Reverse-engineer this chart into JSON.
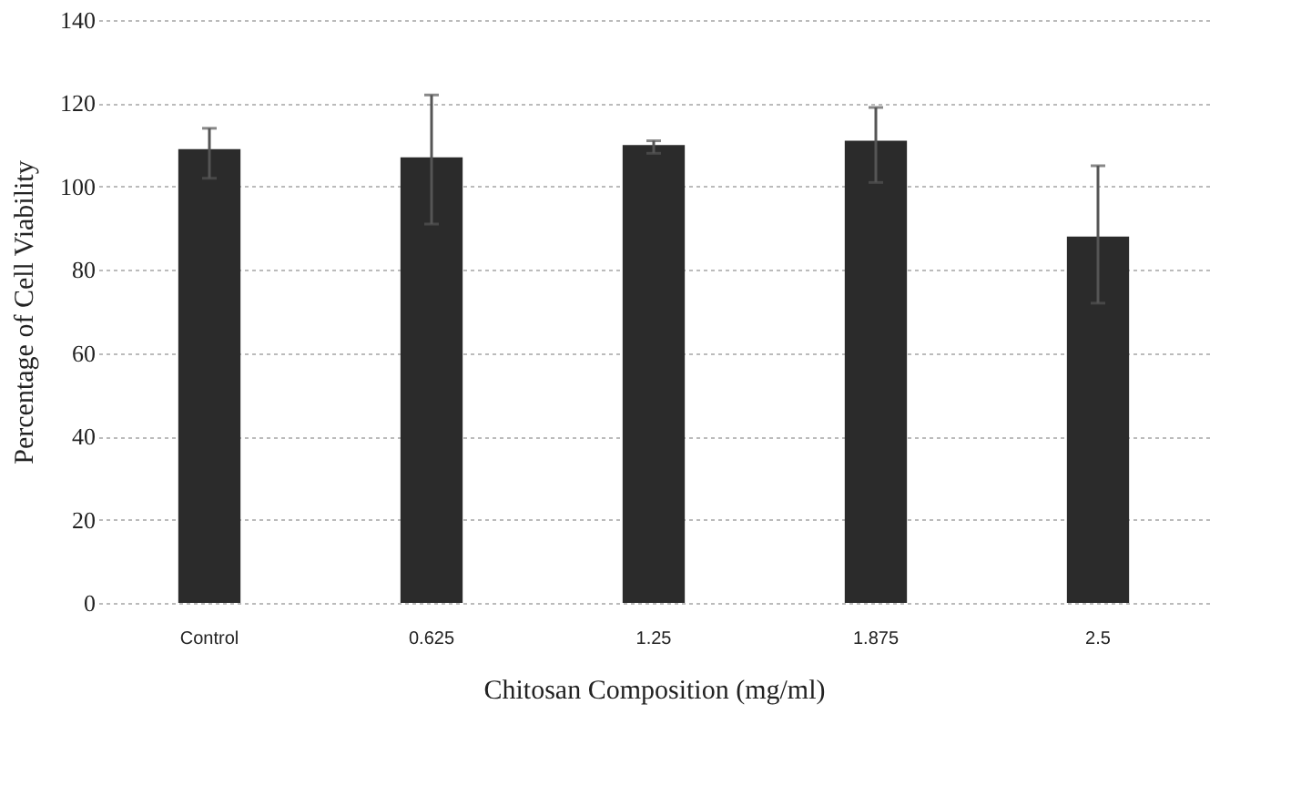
{
  "chart_data": {
    "type": "bar",
    "xlabel": "Chitosan Composition (mg/ml)",
    "ylabel": "Percentage of Cell Viability",
    "categories": [
      "Control",
      "0.625",
      "1.25",
      "1.875",
      "2.5"
    ],
    "values": [
      109,
      107,
      110,
      111,
      88
    ],
    "errors": [
      [
        102,
        114
      ],
      [
        91,
        122
      ],
      [
        108,
        111
      ],
      [
        101,
        119
      ],
      [
        72,
        105
      ]
    ],
    "color": "#2b2b2b",
    "ylim": [
      0,
      140
    ],
    "yticks": [
      0,
      20,
      40,
      60,
      80,
      100,
      120,
      140
    ],
    "grid": "y"
  }
}
